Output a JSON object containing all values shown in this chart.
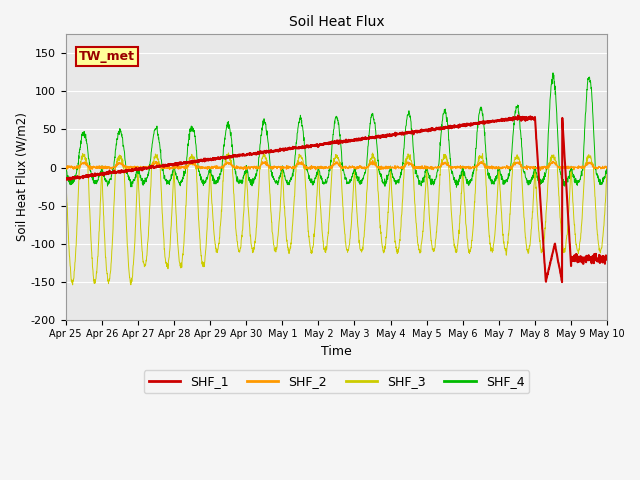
{
  "title": "Soil Heat Flux",
  "xlabel": "Time",
  "ylabel": "Soil Heat Flux (W/m2)",
  "ylim": [
    -200,
    175
  ],
  "yticks": [
    -200,
    -150,
    -100,
    -50,
    0,
    50,
    100,
    150
  ],
  "plot_bg_color": "#e8e8e8",
  "fig_bg_color": "#f5f5f5",
  "line_colors": {
    "SHF_1": "#cc0000",
    "SHF_2": "#ff9900",
    "SHF_3": "#cccc00",
    "SHF_4": "#00bb00"
  },
  "annotation_text": "TW_met",
  "annotation_color": "#990000",
  "annotation_bg": "#ffff99",
  "annotation_border": "#bb0000",
  "x_tick_labels": [
    "Apr 25",
    "Apr 26",
    "Apr 27",
    "Apr 28",
    "Apr 29",
    "Apr 30",
    "May 1",
    "May 2",
    "May 3",
    "May 4",
    "May 5",
    "May 6",
    "May 7",
    "May 8",
    "May 9",
    "May 10"
  ],
  "days": 15,
  "ppd": 144
}
